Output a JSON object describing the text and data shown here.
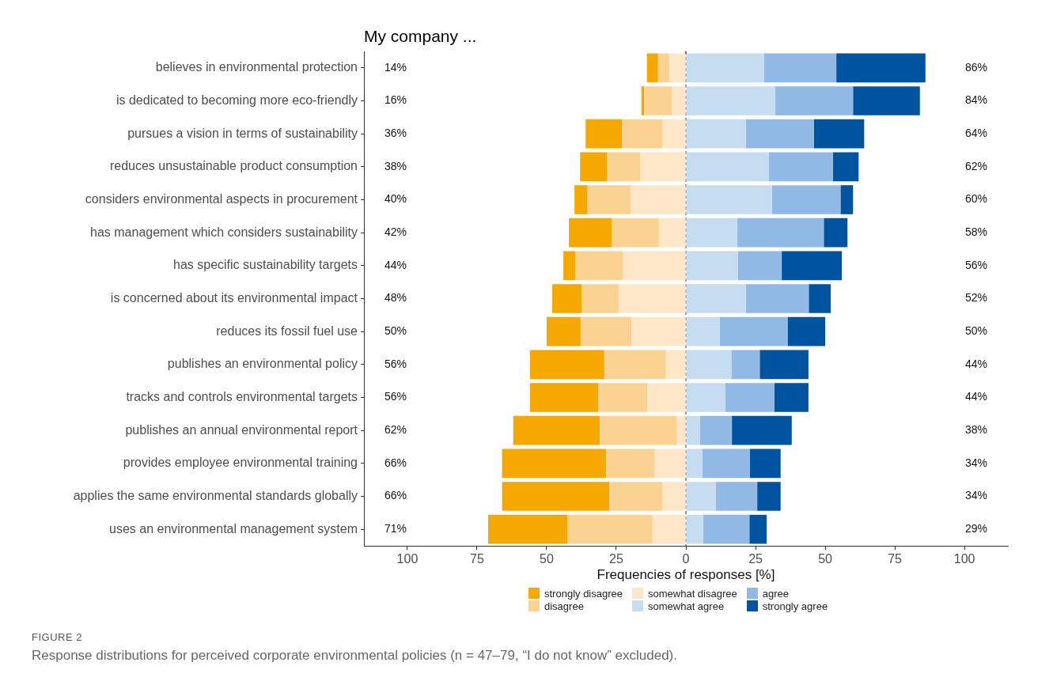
{
  "chart_data": {
    "type": "bar",
    "orientation": "horizontal",
    "stacked": true,
    "title": "My company ...",
    "xlabel": "Frequencies of responses [%]",
    "categories": [
      "believes in environmental protection",
      "is dedicated to becoming more eco-friendly",
      "pursues a vision in terms of sustainability",
      "reduces unsustainable product consumption",
      "considers environmental aspects in procurement",
      "has management which considers sustainability",
      "has specific sustainability targets",
      "is concerned about its environmental impact",
      "reduces its fossil fuel use",
      "publishes an environmental policy",
      "tracks and controls environmental targets",
      "publishes an annual environmental report",
      "provides employee environmental training",
      "applies the same environmental standards globally",
      "uses an environmental management system"
    ],
    "series": [
      {
        "name": "somewhat disagree",
        "color": "#fde7c6",
        "values": [
          -6,
          -5,
          -8.5,
          -16.3,
          -19.9,
          -9.7,
          -22.7,
          -24,
          -19.6,
          -7.2,
          -13.9,
          -3.2,
          -11.3,
          -8.4,
          -12
        ]
      },
      {
        "name": "disagree",
        "color": "#fad292",
        "values": [
          -4,
          -10,
          -14.5,
          -12.1,
          -15.4,
          -16.9,
          -17,
          -13.4,
          -18.2,
          -22.1,
          -17.5,
          -27.7,
          -17.3,
          -19.1,
          -30.6
        ]
      },
      {
        "name": "strongly disagree",
        "color": "#f5a800",
        "values": [
          -4,
          -1,
          -13,
          -9.6,
          -4.7,
          -15.4,
          -4.3,
          -10.6,
          -12.2,
          -26.7,
          -24.6,
          -31.1,
          -37.4,
          -38.5,
          -28.4
        ]
      },
      {
        "name": "somewhat agree",
        "color": "#c6dcf1",
        "values": [
          28,
          32,
          21.5,
          29.8,
          30.9,
          18.4,
          18.7,
          21.5,
          12.2,
          16.3,
          14.2,
          5.1,
          5.9,
          10.8,
          6.2
        ]
      },
      {
        "name": "agree",
        "color": "#90bae5",
        "values": [
          26,
          28,
          24.5,
          23,
          24.6,
          31.1,
          15.7,
          22.6,
          24.3,
          10.2,
          17.6,
          11.4,
          17,
          14.8,
          16.6
        ]
      },
      {
        "name": "strongly agree",
        "color": "#00539f",
        "values": [
          32,
          24,
          18,
          9.2,
          4.5,
          8.5,
          21.6,
          7.9,
          13.5,
          17.5,
          12.2,
          21.5,
          11.1,
          8.4,
          6.2
        ]
      }
    ],
    "xlim": [
      -115.6,
      115.6
    ],
    "xticks": [
      {
        "value": -100,
        "label": "100"
      },
      {
        "value": -75,
        "label": "75"
      },
      {
        "value": -50,
        "label": "50"
      },
      {
        "value": -25,
        "label": "25"
      },
      0,
      25,
      50,
      75,
      100
    ],
    "ref_lines": [
      {
        "axis": "x",
        "value": 0,
        "line_style": "dashed",
        "color": "#333333"
      }
    ],
    "grid": false,
    "legend": "bottom",
    "annotations": [
      "14%",
      "86%",
      "16%",
      "84%",
      "36%",
      "64%",
      "38%",
      "62%",
      "40%",
      "60%",
      "42%",
      "58%",
      "44%",
      "56%",
      "48%",
      "52%",
      "50%",
      "50%",
      "56%",
      "44%",
      "56%",
      "44%",
      "62%",
      "38%",
      "66%",
      "34%",
      "66%",
      "34%",
      "71%",
      "29%",
      "FIGURE 2",
      "Response distributions for perceived corporate environmental policies (n = 47–79, “I do not know” excluded)."
    ]
  }
}
